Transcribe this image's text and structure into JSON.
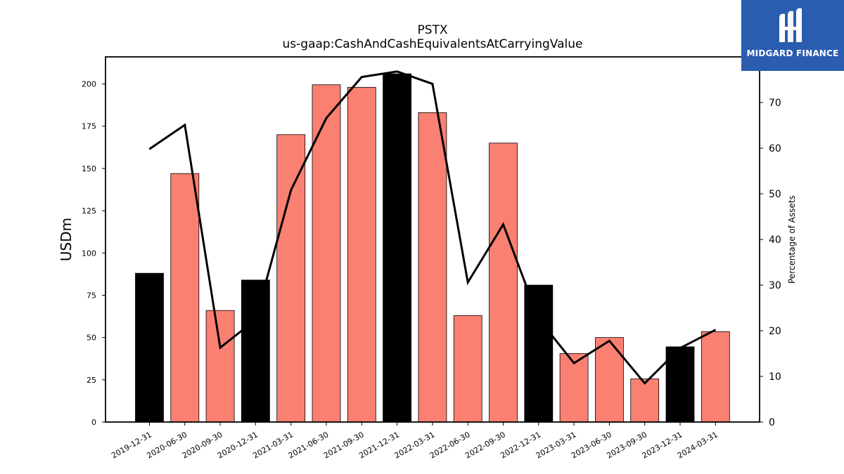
{
  "chart_data": {
    "type": "bar",
    "title": "PSTX",
    "subtitle": "us-gaap:CashAndCashEquivalentsAtCarryingValue",
    "ylabel": "USDm",
    "y2label": "Percentage of Assets",
    "ylim": [
      0,
      216
    ],
    "y2lim": [
      0,
      80
    ],
    "yticks": [
      0,
      25,
      50,
      75,
      100,
      125,
      150,
      175,
      200
    ],
    "y2ticks": [
      0,
      10,
      20,
      30,
      40,
      50,
      60,
      70
    ],
    "categories": [
      "2019-12-31",
      "2020-06-30",
      "2020-09-30",
      "2020-12-31",
      "2021-03-31",
      "2021-06-30",
      "2021-09-30",
      "2021-12-31",
      "2022-03-31",
      "2022-06-30",
      "2022-09-30",
      "2022-12-31",
      "2023-03-31",
      "2023-06-30",
      "2023-09-30",
      "2023-12-31",
      "2024-03-31"
    ],
    "series": [
      {
        "kind": "bar",
        "values": [
          88,
          147,
          66,
          84,
          170,
          199.5,
          198,
          206,
          183,
          63,
          165,
          81,
          40.5,
          50,
          25.5,
          44.5,
          53.5
        ],
        "bar_colors": [
          "#000000",
          "#fa8072",
          "#fa8072",
          "#000000",
          "#fa8072",
          "#fa8072",
          "#fa8072",
          "#000000",
          "#fa8072",
          "#fa8072",
          "#fa8072",
          "#000000",
          "#fa8072",
          "#fa8072",
          "#fa8072",
          "#000000",
          "#fa8072"
        ]
      },
      {
        "kind": "line",
        "axis": "right",
        "color": "#000000",
        "values": [
          59.8,
          65.1,
          16.3,
          22.4,
          50.8,
          66.6,
          75.6,
          76.8,
          74.1,
          30.6,
          43.3,
          22.6,
          12.9,
          17.8,
          8.5,
          16.2,
          20.2
        ]
      }
    ],
    "grid": false,
    "legend": "none"
  },
  "logo": {
    "text": "MIDGARD FINANCE",
    "background": "#2a5db0"
  }
}
